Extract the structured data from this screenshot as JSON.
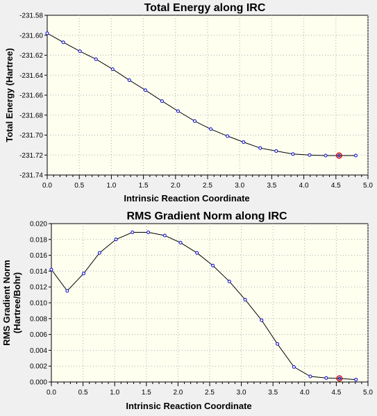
{
  "chart_data": [
    {
      "type": "line",
      "title": "Total Energy along IRC",
      "xlabel": "Intrinsic Reaction Coordinate",
      "ylabel": "Total Energy (Hartree)",
      "xlim": [
        0.0,
        5.0
      ],
      "ylim": [
        -231.74,
        -231.58
      ],
      "grid": true,
      "x_ticks": [
        "0.0",
        "0.5",
        "1.0",
        "1.5",
        "2.0",
        "2.5",
        "3.0",
        "3.5",
        "4.0",
        "4.5",
        "5.0"
      ],
      "y_ticks": [
        "-231.58",
        "-231.60",
        "-231.62",
        "-231.64",
        "-231.66",
        "-231.68",
        "-231.70",
        "-231.72",
        "-231.74"
      ],
      "x_tick_values": [
        0.0,
        0.5,
        1.0,
        1.5,
        2.0,
        2.5,
        3.0,
        3.5,
        4.0,
        4.5,
        5.0
      ],
      "y_tick_values": [
        -231.58,
        -231.6,
        -231.62,
        -231.64,
        -231.66,
        -231.68,
        -231.7,
        -231.72,
        -231.74
      ],
      "series": [
        {
          "x": [
            0.0,
            0.25,
            0.51,
            0.76,
            1.02,
            1.28,
            1.53,
            1.79,
            2.04,
            2.3,
            2.55,
            2.81,
            3.06,
            3.32,
            3.57,
            3.83,
            4.09,
            4.34,
            4.55,
            4.81
          ],
          "y": [
            -231.598,
            -231.607,
            -231.616,
            -231.624,
            -231.634,
            -231.645,
            -231.655,
            -231.666,
            -231.676,
            -231.686,
            -231.694,
            -231.701,
            -231.707,
            -231.713,
            -231.716,
            -231.719,
            -231.72,
            -231.7205,
            -231.7205,
            -231.7205
          ],
          "highlight_index": 18
        }
      ],
      "colors": {
        "line": "#000000",
        "marker": "#0000cc",
        "highlight": "#cc0000",
        "plot_bg": "#fffff0",
        "grid": "#aaaaaa"
      }
    },
    {
      "type": "line",
      "title": "RMS Gradient Norm along IRC",
      "xlabel": "Intrinsic Reaction Coordinate",
      "ylabel": "RMS Gradient Norm (Hartree/Bohr)",
      "xlim": [
        0.0,
        5.0
      ],
      "ylim": [
        0.0,
        0.02
      ],
      "grid": true,
      "x_ticks": [
        "0.0",
        "0.5",
        "1.0",
        "1.5",
        "2.0",
        "2.5",
        "3.0",
        "3.5",
        "4.0",
        "4.5",
        "5.0"
      ],
      "y_ticks": [
        "0.000",
        "0.002",
        "0.004",
        "0.006",
        "0.008",
        "0.010",
        "0.012",
        "0.014",
        "0.016",
        "0.018",
        "0.020"
      ],
      "x_tick_values": [
        0.0,
        0.5,
        1.0,
        1.5,
        2.0,
        2.5,
        3.0,
        3.5,
        4.0,
        4.5,
        5.0
      ],
      "y_tick_values": [
        0.0,
        0.002,
        0.004,
        0.006,
        0.008,
        0.01,
        0.012,
        0.014,
        0.016,
        0.018,
        0.02
      ],
      "series": [
        {
          "x": [
            0.0,
            0.25,
            0.51,
            0.76,
            1.02,
            1.28,
            1.53,
            1.79,
            2.04,
            2.3,
            2.55,
            2.81,
            3.06,
            3.32,
            3.57,
            3.83,
            4.09,
            4.34,
            4.55,
            4.81
          ],
          "y": [
            0.0142,
            0.0115,
            0.0137,
            0.0163,
            0.018,
            0.0189,
            0.0189,
            0.0185,
            0.0176,
            0.0163,
            0.0147,
            0.0127,
            0.0104,
            0.0078,
            0.0048,
            0.0019,
            0.0007,
            0.0005,
            0.00045,
            0.0003
          ],
          "highlight_index": 18
        }
      ],
      "colors": {
        "line": "#000000",
        "marker": "#0000cc",
        "highlight": "#cc0000",
        "plot_bg": "#fffff0",
        "grid": "#aaaaaa"
      }
    }
  ]
}
